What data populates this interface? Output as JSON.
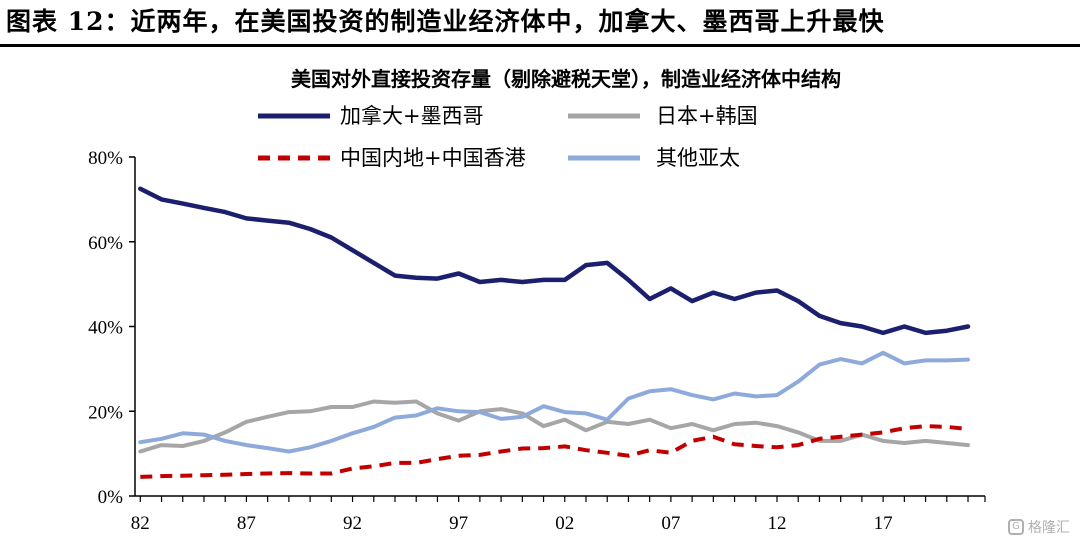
{
  "figure": {
    "caption": "图表 12：近两年，在美国投资的制造业经济体中，加拿大、墨西哥上升最快"
  },
  "colors": {
    "canada_mexico": "#1c1f6e",
    "japan_korea": "#a6a6a6",
    "china": "#c00000",
    "other_apac": "#8eaadb"
  },
  "watermark": {
    "text": "格隆汇",
    "icon": "gelonghui-logo-icon"
  },
  "chart_data": {
    "type": "line",
    "title": "美国对外直接投资存量（剔除避税天堂），制造业经济体中结构",
    "xlabel": "",
    "ylabel": "",
    "x": [
      1982,
      1983,
      1984,
      1985,
      1986,
      1987,
      1988,
      1989,
      1990,
      1991,
      1992,
      1993,
      1994,
      1995,
      1996,
      1997,
      1998,
      1999,
      2000,
      2001,
      2002,
      2003,
      2004,
      2005,
      2006,
      2007,
      2008,
      2009,
      2010,
      2011,
      2012,
      2013,
      2014,
      2015,
      2016,
      2017,
      2018,
      2019,
      2020,
      2021
    ],
    "xticks": [
      1982,
      1987,
      1992,
      1997,
      2002,
      2007,
      2012,
      2017
    ],
    "xtick_labels": [
      "82",
      "87",
      "92",
      "97",
      "02",
      "07",
      "12",
      "17"
    ],
    "ylim": [
      0,
      80
    ],
    "yticks": [
      0,
      20,
      40,
      60,
      80
    ],
    "ytick_labels": [
      "0%",
      "20%",
      "40%",
      "60%",
      "80%"
    ],
    "grid": false,
    "legend_position": "top",
    "series": [
      {
        "name": "加拿大+墨西哥",
        "color": "#1c1f6e",
        "style": "solid",
        "values": [
          72.5,
          70,
          69,
          68,
          67,
          65.5,
          65,
          64.5,
          63,
          61,
          58,
          55,
          52,
          51.5,
          51.3,
          52.5,
          50.5,
          51,
          50.5,
          51,
          51,
          54.5,
          55,
          51,
          46.5,
          49,
          46,
          48,
          46.5,
          48,
          48.5,
          46,
          42.5,
          40.8,
          40,
          38.5,
          40,
          38.5,
          39,
          40
        ]
      },
      {
        "name": "日本+韩国",
        "color": "#a6a6a6",
        "style": "solid",
        "values": [
          10.5,
          12,
          11.8,
          13,
          15,
          17.5,
          18.7,
          19.8,
          20,
          21,
          21,
          22.3,
          22,
          22.3,
          19.5,
          17.8,
          20,
          20.5,
          19.5,
          16.5,
          18,
          15.5,
          17.5,
          17,
          18,
          16,
          17,
          15.5,
          17,
          17.3,
          16.5,
          15,
          13,
          13,
          14.5,
          13,
          12.5,
          13,
          12.5,
          12
        ]
      },
      {
        "name": "中国内地+中国香港",
        "color": "#c00000",
        "style": "dashed",
        "values": [
          4.5,
          4.7,
          4.8,
          4.9,
          5,
          5.2,
          5.3,
          5.4,
          5.3,
          5.3,
          6.5,
          7,
          7.8,
          7.8,
          8.7,
          9.5,
          9.7,
          10.5,
          11.2,
          11.3,
          11.7,
          10.8,
          10.2,
          9.5,
          10.8,
          10.2,
          13,
          14,
          12.2,
          11.8,
          11.5,
          12,
          13.5,
          14,
          14.5,
          15,
          16,
          16.5,
          16.3,
          15.8
        ]
      },
      {
        "name": "其他亚太",
        "color": "#8eaadb",
        "style": "solid",
        "values": [
          12.7,
          13.5,
          14.8,
          14.5,
          13,
          12,
          11.3,
          10.5,
          11.5,
          13,
          14.8,
          16.3,
          18.5,
          19,
          20.7,
          20,
          19.8,
          18.2,
          18.7,
          21.2,
          19.8,
          19.5,
          18,
          23,
          24.7,
          25.2,
          23.8,
          22.8,
          24.2,
          23.5,
          23.8,
          27,
          31,
          32.3,
          31.3,
          33.8,
          31.3,
          32,
          32,
          32.2
        ]
      }
    ]
  }
}
